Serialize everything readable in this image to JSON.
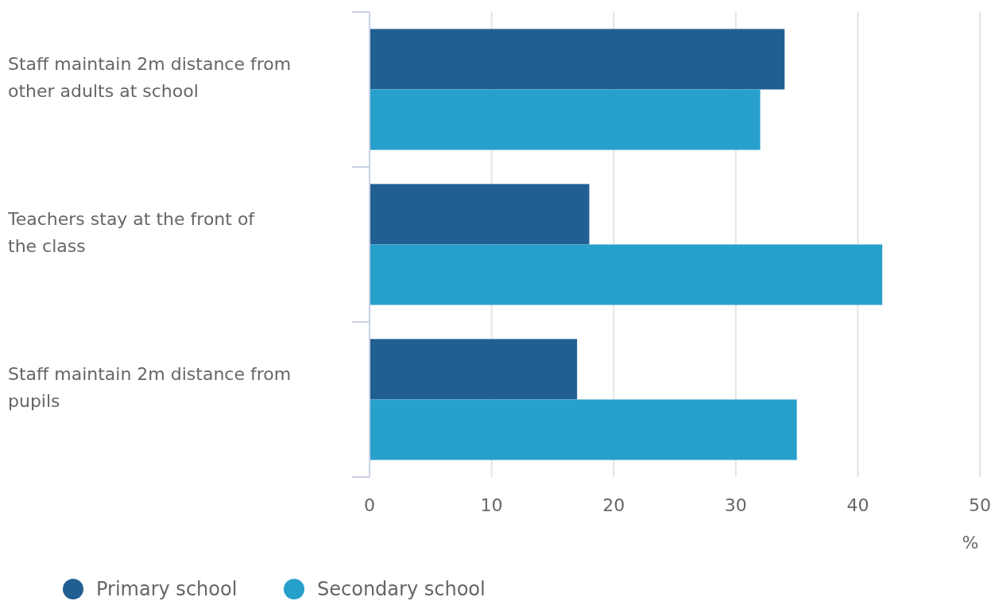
{
  "chart_data": {
    "type": "bar",
    "orientation": "horizontal",
    "categories": [
      "Staff maintain 2m distance from other adults at school",
      "Teachers stay at the front of the class",
      "Staff maintain 2m distance from pupils"
    ],
    "series": [
      {
        "name": "Primary school",
        "color": "#215f93",
        "values": [
          34,
          18,
          17
        ]
      },
      {
        "name": "Secondary school",
        "color": "#27a0cc",
        "values": [
          32,
          42,
          35
        ]
      }
    ],
    "xlim": [
      0,
      50
    ],
    "xticks": [
      0,
      10,
      20,
      30,
      40,
      50
    ],
    "xlabel": "%",
    "grid": "x",
    "legend": "bottom left"
  }
}
